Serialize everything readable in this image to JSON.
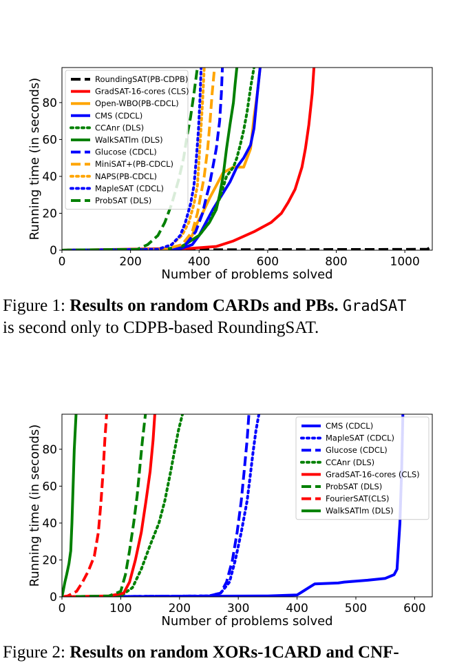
{
  "figure1": {
    "chart_data": {
      "type": "line",
      "xlabel": "Number of problems solved",
      "ylabel": "Running time (in seconds)",
      "xlim": [
        0,
        1080
      ],
      "ylim": [
        0,
        99
      ],
      "xticks": [
        0,
        200,
        400,
        600,
        800,
        1000
      ],
      "yticks": [
        0,
        20,
        40,
        60,
        80
      ],
      "legend_position": "top-left",
      "series": [
        {
          "name": "RoundingSAT(PB-CDPB)",
          "color": "#000000",
          "style": "dashed",
          "points": [
            [
              0,
              0
            ],
            [
              600,
              0.3
            ],
            [
              1000,
              0.4
            ],
            [
              1065,
              0.5
            ],
            [
              1075,
              1.5
            ],
            [
              1080,
              2
            ]
          ]
        },
        {
          "name": "GradSAT-16-cores (CLS)",
          "color": "#ff0000",
          "style": "solid",
          "points": [
            [
              0,
              0
            ],
            [
              380,
              1
            ],
            [
              450,
              2
            ],
            [
              500,
              5
            ],
            [
              560,
              10
            ],
            [
              610,
              15
            ],
            [
              640,
              20
            ],
            [
              660,
              26
            ],
            [
              680,
              33
            ],
            [
              700,
              45
            ],
            [
              710,
              55
            ],
            [
              720,
              68
            ],
            [
              730,
              85
            ],
            [
              735,
              99
            ]
          ]
        },
        {
          "name": "Open-WBO(PB-CDCL)",
          "color": "#ffa500",
          "style": "solid",
          "points": [
            [
              0,
              0
            ],
            [
              320,
              0.5
            ],
            [
              360,
              3
            ],
            [
              380,
              8
            ],
            [
              395,
              15
            ],
            [
              410,
              20
            ],
            [
              430,
              28
            ],
            [
              450,
              35
            ],
            [
              470,
              42
            ],
            [
              500,
              45
            ],
            [
              530,
              45
            ],
            [
              550,
              55
            ],
            [
              560,
              72
            ],
            [
              570,
              85
            ],
            [
              578,
              99
            ]
          ]
        },
        {
          "name": "CMS (CDCL)",
          "color": "#0000ff",
          "style": "solid",
          "points": [
            [
              0,
              0
            ],
            [
              340,
              0.5
            ],
            [
              380,
              3
            ],
            [
              400,
              8
            ],
            [
              420,
              15
            ],
            [
              440,
              22
            ],
            [
              460,
              28
            ],
            [
              490,
              37
            ],
            [
              510,
              45
            ],
            [
              530,
              50
            ],
            [
              550,
              57
            ],
            [
              560,
              66
            ],
            [
              570,
              85
            ],
            [
              578,
              99
            ]
          ]
        },
        {
          "name": "CCAnr (DLS)",
          "color": "#008000",
          "style": "dotted",
          "points": [
            [
              0,
              0
            ],
            [
              300,
              0.5
            ],
            [
              350,
              2
            ],
            [
              400,
              8
            ],
            [
              430,
              15
            ],
            [
              460,
              28
            ],
            [
              480,
              40
            ],
            [
              500,
              45
            ],
            [
              510,
              50
            ],
            [
              520,
              57
            ],
            [
              530,
              65
            ],
            [
              540,
              75
            ],
            [
              550,
              88
            ],
            [
              560,
              99
            ]
          ]
        },
        {
          "name": "WalkSATlm (DLS)",
          "color": "#008000",
          "style": "solid",
          "points": [
            [
              0,
              0
            ],
            [
              300,
              0.5
            ],
            [
              350,
              2
            ],
            [
              400,
              8
            ],
            [
              430,
              15
            ],
            [
              450,
              22
            ],
            [
              460,
              30
            ],
            [
              470,
              40
            ],
            [
              480,
              55
            ],
            [
              490,
              68
            ],
            [
              500,
              80
            ],
            [
              505,
              90
            ],
            [
              510,
              99
            ]
          ]
        },
        {
          "name": "Glucose (CDCL)",
          "color": "#0000ff",
          "style": "dashed",
          "points": [
            [
              0,
              0
            ],
            [
              320,
              0.5
            ],
            [
              360,
              3
            ],
            [
              390,
              10
            ],
            [
              410,
              20
            ],
            [
              420,
              28
            ],
            [
              430,
              35
            ],
            [
              440,
              45
            ],
            [
              450,
              55
            ],
            [
              460,
              70
            ],
            [
              465,
              85
            ],
            [
              468,
              99
            ]
          ]
        },
        {
          "name": "MiniSAT+(PB-CDCL)",
          "color": "#ffa500",
          "style": "dashed",
          "points": [
            [
              0,
              0
            ],
            [
              300,
              0.5
            ],
            [
              350,
              3
            ],
            [
              380,
              10
            ],
            [
              395,
              20
            ],
            [
              405,
              30
            ],
            [
              415,
              40
            ],
            [
              425,
              55
            ],
            [
              432,
              70
            ],
            [
              438,
              85
            ],
            [
              445,
              99
            ]
          ]
        },
        {
          "name": "NAPS(PB-CDCL)",
          "color": "#ffa500",
          "style": "dotted",
          "points": [
            [
              0,
              0
            ],
            [
              280,
              0.5
            ],
            [
              320,
              3
            ],
            [
              350,
              8
            ],
            [
              370,
              15
            ],
            [
              385,
              25
            ],
            [
              395,
              35
            ],
            [
              400,
              50
            ],
            [
              405,
              65
            ],
            [
              410,
              80
            ],
            [
              415,
              99
            ]
          ]
        },
        {
          "name": "MapleSAT (CDCL)",
          "color": "#0000ff",
          "style": "dotted",
          "points": [
            [
              0,
              0
            ],
            [
              280,
              0.5
            ],
            [
              320,
              3
            ],
            [
              345,
              8
            ],
            [
              360,
              15
            ],
            [
              375,
              25
            ],
            [
              385,
              35
            ],
            [
              392,
              50
            ],
            [
              398,
              65
            ],
            [
              402,
              80
            ],
            [
              406,
              99
            ]
          ]
        },
        {
          "name": "ProbSAT (DLS)",
          "color": "#008000",
          "style": "dashed",
          "points": [
            [
              0,
              0
            ],
            [
              220,
              0.5
            ],
            [
              250,
              3
            ],
            [
              280,
              8
            ],
            [
              300,
              15
            ],
            [
              320,
              25
            ],
            [
              340,
              38
            ],
            [
              355,
              50
            ],
            [
              365,
              62
            ],
            [
              375,
              72
            ],
            [
              385,
              85
            ],
            [
              395,
              99
            ]
          ]
        }
      ]
    }
  },
  "caption1": {
    "label": "Figure 1: ",
    "bold": "Results on random CARDs and PBs.",
    "code": "GradSAT",
    "rest": "is second only to CDPB-based RoundingSAT."
  },
  "figure2": {
    "chart_data": {
      "type": "line",
      "xlabel": "Number of problems solved",
      "ylabel": "Running time (in seconds)",
      "xlim": [
        0,
        630
      ],
      "ylim": [
        0,
        99
      ],
      "xticks": [
        0,
        100,
        200,
        300,
        400,
        500,
        600
      ],
      "yticks": [
        0,
        20,
        40,
        60,
        80
      ],
      "legend_position": "top-right",
      "series": [
        {
          "name": "CMS (CDCL)",
          "color": "#0000ff",
          "style": "solid",
          "points": [
            [
              0,
              0
            ],
            [
              350,
              0.5
            ],
            [
              400,
              1
            ],
            [
              410,
              3
            ],
            [
              420,
              5
            ],
            [
              430,
              7
            ],
            [
              470,
              7.5
            ],
            [
              480,
              8
            ],
            [
              500,
              8.5
            ],
            [
              520,
              9
            ],
            [
              550,
              10
            ],
            [
              565,
              12
            ],
            [
              570,
              15
            ],
            [
              575,
              40
            ],
            [
              578,
              70
            ],
            [
              580,
              99
            ]
          ]
        },
        {
          "name": "MapleSAT (CDCL)",
          "color": "#0000ff",
          "style": "dotted",
          "points": [
            [
              0,
              0
            ],
            [
              250,
              0.5
            ],
            [
              270,
              2
            ],
            [
              285,
              8
            ],
            [
              295,
              20
            ],
            [
              305,
              35
            ],
            [
              315,
              52
            ],
            [
              320,
              65
            ],
            [
              325,
              78
            ],
            [
              330,
              90
            ],
            [
              335,
              99
            ]
          ]
        },
        {
          "name": "Glucose (CDCL)",
          "color": "#0000ff",
          "style": "dashed",
          "points": [
            [
              0,
              0
            ],
            [
              250,
              0.5
            ],
            [
              270,
              2
            ],
            [
              280,
              8
            ],
            [
              290,
              20
            ],
            [
              298,
              35
            ],
            [
              305,
              52
            ],
            [
              310,
              68
            ],
            [
              315,
              85
            ],
            [
              318,
              99
            ]
          ]
        },
        {
          "name": "CCAnr (DLS)",
          "color": "#008000",
          "style": "dotted",
          "points": [
            [
              0,
              0
            ],
            [
              100,
              0.5
            ],
            [
              120,
              5
            ],
            [
              135,
              15
            ],
            [
              150,
              28
            ],
            [
              165,
              40
            ],
            [
              175,
              52
            ],
            [
              185,
              68
            ],
            [
              192,
              80
            ],
            [
              198,
              90
            ],
            [
              205,
              99
            ]
          ]
        },
        {
          "name": "GradSAT-16-cores (CLS)",
          "color": "#ff0000",
          "style": "solid",
          "points": [
            [
              0,
              0
            ],
            [
              80,
              0.5
            ],
            [
              105,
              2
            ],
            [
              115,
              8
            ],
            [
              125,
              20
            ],
            [
              135,
              35
            ],
            [
              143,
              52
            ],
            [
              150,
              68
            ],
            [
              155,
              85
            ],
            [
              158,
              99
            ]
          ]
        },
        {
          "name": "ProbSAT (DLS)",
          "color": "#008000",
          "style": "dashed",
          "points": [
            [
              0,
              0
            ],
            [
              80,
              0.5
            ],
            [
              100,
              3
            ],
            [
              108,
              12
            ],
            [
              115,
              25
            ],
            [
              122,
              40
            ],
            [
              128,
              55
            ],
            [
              133,
              72
            ],
            [
              137,
              85
            ],
            [
              142,
              99
            ]
          ]
        },
        {
          "name": "FourierSAT(CLS)",
          "color": "#ff0000",
          "style": "dashed",
          "points": [
            [
              0,
              0
            ],
            [
              10,
              0.5
            ],
            [
              25,
              3
            ],
            [
              35,
              8
            ],
            [
              45,
              14
            ],
            [
              55,
              22
            ],
            [
              62,
              35
            ],
            [
              66,
              50
            ],
            [
              70,
              68
            ],
            [
              73,
              85
            ],
            [
              76,
              99
            ]
          ]
        },
        {
          "name": "WalkSATlm (DLS)",
          "color": "#008000",
          "style": "solid",
          "points": [
            [
              0,
              0
            ],
            [
              2,
              3
            ],
            [
              5,
              8
            ],
            [
              8,
              12
            ],
            [
              12,
              18
            ],
            [
              15,
              25
            ],
            [
              17,
              40
            ],
            [
              19,
              60
            ],
            [
              21,
              80
            ],
            [
              24,
              99
            ]
          ]
        }
      ]
    }
  },
  "caption2": {
    "label": "Figure 2: ",
    "bold": "Results on random XORs-1CARD and CNF-"
  }
}
